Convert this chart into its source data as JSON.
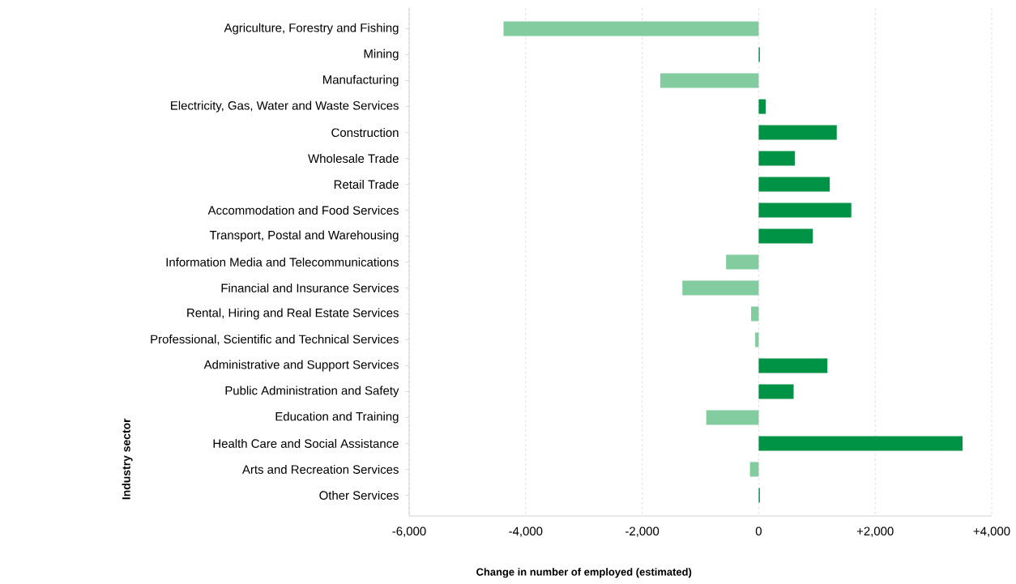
{
  "chart_data": {
    "type": "bar",
    "orientation": "horizontal",
    "xlabel": "Change in number of employed (estimated)",
    "ylabel": "Industry sector",
    "categories": [
      "Agriculture, Forestry and Fishing",
      "Mining",
      "Manufacturing",
      "Electricity, Gas, Water and Waste Services",
      "Construction",
      "Wholesale Trade",
      "Retail Trade",
      "Accommodation and Food Services",
      "Transport, Postal and Warehousing",
      "Information Media and Telecommunications",
      "Financial and Insurance Services",
      "Rental, Hiring and Real Estate Services",
      "Professional, Scientific and Technical Services",
      "Administrative and Support Services",
      "Public Administration and Safety",
      "Education and Training",
      "Health Care and Social Assistance",
      "Arts and Recreation Services",
      "Other Services"
    ],
    "values": [
      -4380,
      20,
      -1690,
      120,
      1340,
      620,
      1220,
      1590,
      930,
      -560,
      -1310,
      -130,
      -60,
      1180,
      600,
      -900,
      3500,
      -150,
      20
    ],
    "colors": [
      "#82cca0",
      "#009245",
      "#82cca0",
      "#009245",
      "#009245",
      "#009245",
      "#009245",
      "#009245",
      "#009245",
      "#82cca0",
      "#82cca0",
      "#82cca0",
      "#82cca0",
      "#009245",
      "#009245",
      "#82cca0",
      "#009245",
      "#82cca0",
      "#009245"
    ],
    "xlim": [
      -6000,
      4000
    ],
    "xticks": [
      {
        "value": -6000,
        "label": "-6,000"
      },
      {
        "value": -4000,
        "label": "-4,000"
      },
      {
        "value": -2000,
        "label": "-2,000"
      },
      0,
      {
        "value": 2000,
        "label": "+2,000"
      },
      {
        "value": 4000,
        "label": "+4,000"
      }
    ],
    "grid": "x"
  }
}
